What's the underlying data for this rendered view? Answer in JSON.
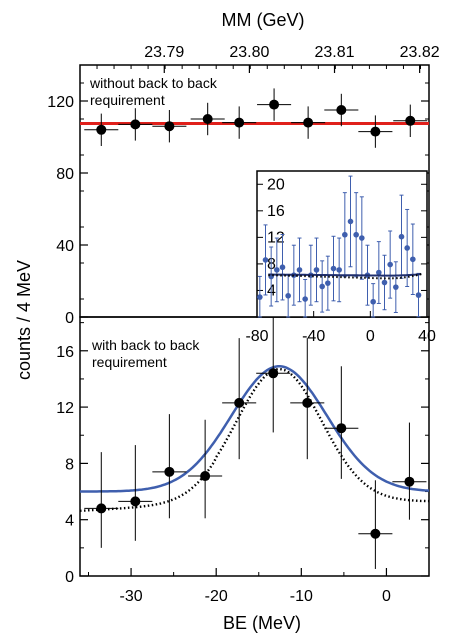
{
  "chart_data": [
    {
      "panel": "top",
      "type": "scatter",
      "annotation_lines": [
        "without back to back",
        "requirement"
      ],
      "xlabel_top": "MM (GeV)",
      "top_tick_labels": [
        "23.79",
        "23.80",
        "23.81",
        "23.82"
      ],
      "ylim": [
        0,
        140
      ],
      "yticks": [
        0,
        40,
        80,
        120
      ],
      "points": [
        {
          "x": -33.5,
          "y": 104,
          "xerr": 2,
          "yerr": 9
        },
        {
          "x": -29.5,
          "y": 107,
          "xerr": 2,
          "yerr": 9
        },
        {
          "x": -25.5,
          "y": 106,
          "xerr": 2,
          "yerr": 9
        },
        {
          "x": -21.0,
          "y": 110,
          "xerr": 2,
          "yerr": 9
        },
        {
          "x": -17.3,
          "y": 108,
          "xerr": 2,
          "yerr": 9
        },
        {
          "x": -13.2,
          "y": 118,
          "xerr": 2,
          "yerr": 9
        },
        {
          "x": -9.2,
          "y": 108,
          "xerr": 2,
          "yerr": 9
        },
        {
          "x": -5.3,
          "y": 115,
          "xerr": 2,
          "yerr": 9
        },
        {
          "x": -1.3,
          "y": 103,
          "xerr": 2,
          "yerr": 9
        },
        {
          "x": 2.8,
          "y": 109,
          "xerr": 2,
          "yerr": 9
        }
      ],
      "fit_line": {
        "y": 107.5,
        "color": "#e0201b"
      }
    },
    {
      "panel": "inset",
      "type": "scatter",
      "xlim": [
        -80,
        40
      ],
      "ylim": [
        0,
        22
      ],
      "xticks": [
        -80,
        -40,
        0,
        40
      ],
      "yticks": [
        4,
        8,
        12,
        16,
        20
      ],
      "point_color": "#3f5fae",
      "points": [
        {
          "x": -78,
          "y": 3
        },
        {
          "x": -74,
          "y": 8.6
        },
        {
          "x": -70,
          "y": 6.1
        },
        {
          "x": -66,
          "y": 7.1
        },
        {
          "x": -62,
          "y": 7.5
        },
        {
          "x": -58,
          "y": 3.2
        },
        {
          "x": -54,
          "y": 6.3
        },
        {
          "x": -50,
          "y": 7.1
        },
        {
          "x": -46,
          "y": 2.7
        },
        {
          "x": -42,
          "y": 6.3
        },
        {
          "x": -38,
          "y": 7.1
        },
        {
          "x": -34,
          "y": 4.6
        },
        {
          "x": -30,
          "y": 5.1
        },
        {
          "x": -26,
          "y": 7.3
        },
        {
          "x": -22,
          "y": 7.1
        },
        {
          "x": -18,
          "y": 12.4
        },
        {
          "x": -14,
          "y": 14.4
        },
        {
          "x": -10,
          "y": 12.4
        },
        {
          "x": -6,
          "y": 11.9
        },
        {
          "x": -2,
          "y": 6.3
        },
        {
          "x": 2,
          "y": 2.3
        },
        {
          "x": 6,
          "y": 6.7
        },
        {
          "x": 10,
          "y": 5.2
        },
        {
          "x": 14,
          "y": 7.9
        },
        {
          "x": 18,
          "y": 4.5
        },
        {
          "x": 22,
          "y": 12.1
        },
        {
          "x": 26,
          "y": 10.4
        },
        {
          "x": 30,
          "y": 8.7
        },
        {
          "x": 34,
          "y": 3.3
        }
      ]
    },
    {
      "panel": "bottom",
      "type": "scatter",
      "annotation_lines": [
        "with back to back",
        "requirement"
      ],
      "xlabel": "BE (MeV)",
      "ylabel": "counts / 4 MeV",
      "xlim": [
        -36,
        5
      ],
      "ylim": [
        0,
        18.4
      ],
      "xticks": [
        -30,
        -20,
        -10,
        0
      ],
      "yticks": [
        0,
        4,
        8,
        12,
        16
      ],
      "points": [
        {
          "x": -33.5,
          "y": 4.8,
          "xerr": 2,
          "ylo": 2.0,
          "yhi": 8.8
        },
        {
          "x": -29.5,
          "y": 5.3,
          "xerr": 2,
          "ylo": 2.5,
          "yhi": 9.3
        },
        {
          "x": -25.5,
          "y": 7.4,
          "xerr": 2,
          "ylo": 4.1,
          "yhi": 11.5
        },
        {
          "x": -21.3,
          "y": 7.1,
          "xerr": 2,
          "ylo": 4.1,
          "yhi": 11.1
        },
        {
          "x": -17.3,
          "y": 12.3,
          "xerr": 2,
          "ylo": 8.3,
          "yhi": 16.9
        },
        {
          "x": -13.3,
          "y": 14.4,
          "xerr": 2,
          "ylo": 10.2,
          "yhi": 19.5
        },
        {
          "x": -9.3,
          "y": 12.3,
          "xerr": 2,
          "ylo": 8.3,
          "yhi": 16.9
        },
        {
          "x": -5.3,
          "y": 10.5,
          "xerr": 2,
          "ylo": 6.9,
          "yhi": 14.9
        },
        {
          "x": -1.3,
          "y": 3.0,
          "xerr": 2,
          "ylo": 0.5,
          "yhi": 6.8
        },
        {
          "x": 2.7,
          "y": 6.7,
          "xerr": 2,
          "ylo": 4.0,
          "yhi": 10.9
        }
      ],
      "fit_solid": {
        "color": "#3f5fae",
        "baseline": 6.0,
        "amplitude": 8.9,
        "center": -12.6,
        "sigma": 5.6
      },
      "fit_dotted": {
        "color": "#000000",
        "baseline": 5.3,
        "amplitude": 9.4,
        "center": -12.6,
        "sigma": 5.0,
        "slope": 0.03
      }
    }
  ]
}
